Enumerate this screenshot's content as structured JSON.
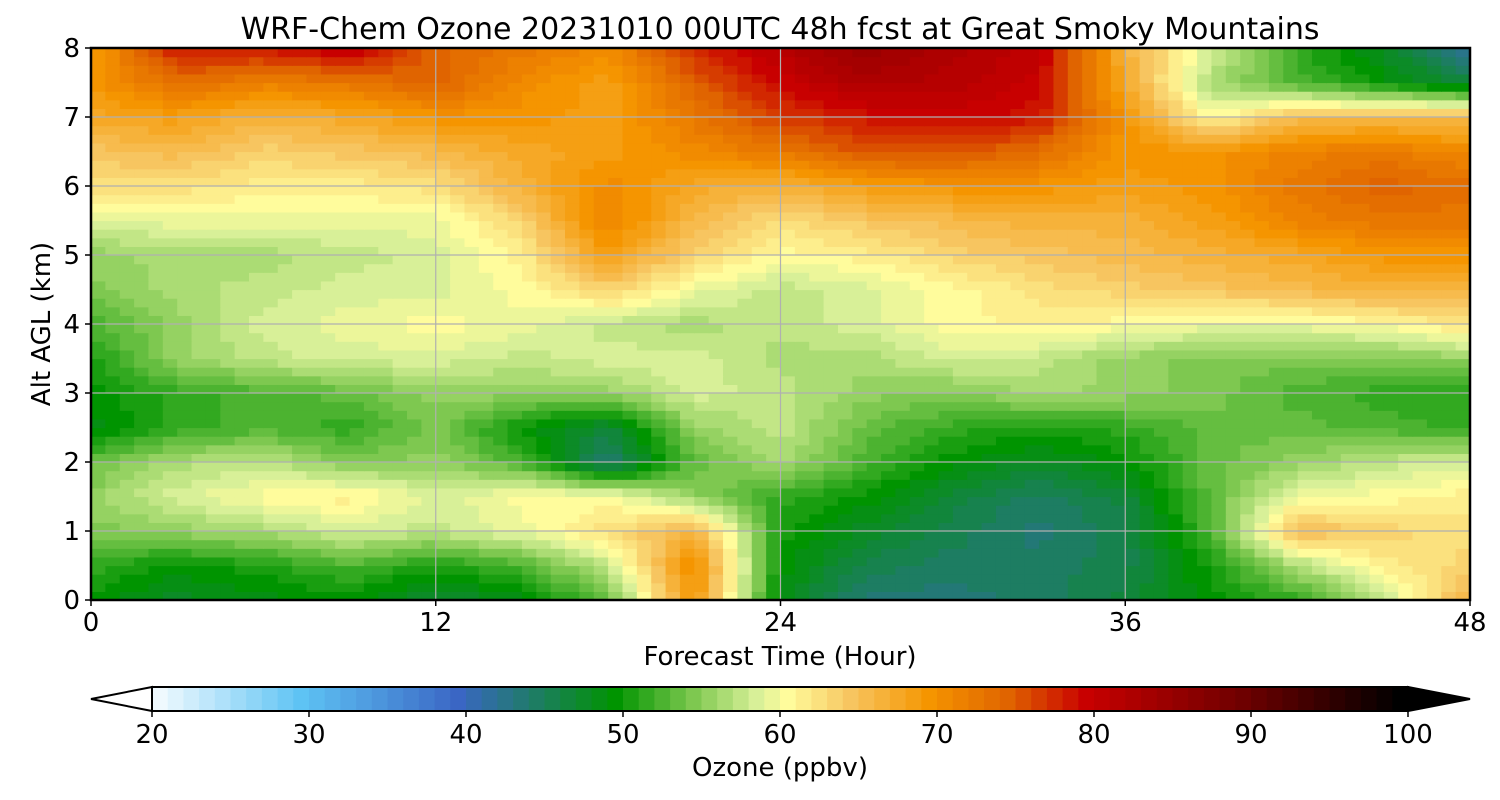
{
  "chart_data": {
    "type": "heatmap",
    "title": "WRF-Chem Ozone  20231010 00UTC 48h fcst at Great Smoky Mountains",
    "xlabel": "Forecast Time (Hour)",
    "ylabel": "Alt AGL (km)",
    "xlim": [
      0,
      48
    ],
    "ylim": [
      0,
      8
    ],
    "x_ticks": [
      0,
      12,
      24,
      36,
      48
    ],
    "y_ticks": [
      0,
      1,
      2,
      3,
      4,
      5,
      6,
      7,
      8
    ],
    "grid": true,
    "x_hours": [
      0,
      3,
      6,
      9,
      12,
      15,
      18,
      21,
      24,
      27,
      30,
      33,
      36,
      39,
      42,
      45,
      48
    ],
    "y_km": [
      0,
      0.5,
      1,
      1.5,
      2,
      2.5,
      3,
      3.5,
      4,
      4.5,
      5,
      5.5,
      6,
      6.5,
      7,
      7.5,
      8
    ],
    "z_ozone_ppbv": [
      [
        50,
        48,
        49,
        50,
        47,
        49,
        54,
        70,
        49,
        44,
        44,
        45,
        47,
        50,
        52,
        58,
        67
      ],
      [
        52,
        50,
        51,
        53,
        51,
        53,
        58,
        71,
        50,
        46,
        45,
        45,
        46,
        51,
        57,
        62,
        64
      ],
      [
        55,
        56,
        57,
        59,
        58,
        60,
        63,
        67,
        51,
        48,
        46,
        44,
        46,
        53,
        66,
        64,
        63
      ],
      [
        56,
        59,
        61,
        62,
        59,
        61,
        61,
        56,
        52,
        50,
        47,
        45,
        47,
        54,
        60,
        61,
        62
      ],
      [
        54,
        57,
        58,
        55,
        56,
        53,
        44,
        54,
        57,
        53,
        50,
        48,
        50,
        54,
        56,
        58,
        59
      ],
      [
        49,
        52,
        53,
        52,
        55,
        50,
        47,
        56,
        58,
        54,
        52,
        51,
        52,
        54,
        54,
        53,
        52
      ],
      [
        50,
        52,
        53,
        54,
        56,
        56,
        56,
        59,
        58,
        56,
        55,
        57,
        56,
        55,
        53,
        52,
        52
      ],
      [
        51,
        56,
        58,
        59,
        59,
        58,
        59,
        59,
        57,
        57,
        59,
        58,
        56,
        55,
        55,
        55,
        56
      ],
      [
        53,
        56,
        59,
        60,
        61,
        60,
        58,
        57,
        58,
        59,
        61,
        62,
        61,
        60,
        60,
        61,
        63
      ],
      [
        55,
        57,
        58,
        59,
        59,
        61,
        64,
        60,
        58,
        59,
        61,
        63,
        64,
        65,
        66,
        67,
        67
      ],
      [
        56,
        57,
        57,
        58,
        59,
        62,
        69,
        64,
        61,
        62,
        64,
        65,
        66,
        67,
        68,
        70,
        70
      ],
      [
        59,
        60,
        60,
        60,
        60,
        64,
        72,
        66,
        63,
        65,
        66,
        67,
        67,
        69,
        72,
        73,
        73
      ],
      [
        63,
        63,
        62,
        62,
        63,
        67,
        71,
        68,
        67,
        69,
        70,
        70,
        69,
        70,
        73,
        75,
        74
      ],
      [
        65,
        66,
        64,
        65,
        66,
        68,
        69,
        71,
        73,
        76,
        76,
        74,
        70,
        70,
        72,
        73,
        71
      ],
      [
        68,
        69,
        67,
        68,
        70,
        70,
        69,
        73,
        77,
        79,
        80,
        79,
        70,
        61,
        66,
        66,
        66
      ],
      [
        70,
        74,
        72,
        73,
        75,
        71,
        69,
        75,
        80,
        83,
        82,
        80,
        68,
        57,
        53,
        50,
        47
      ],
      [
        69,
        79,
        79,
        81,
        75,
        73,
        71,
        78,
        82,
        85,
        83,
        81,
        67,
        59,
        52,
        48,
        42
      ]
    ],
    "colorbar": {
      "label": "Ozone  (ppbv)",
      "min": 20,
      "max": 100,
      "step": 1,
      "ticks": [
        20,
        30,
        40,
        50,
        60,
        70,
        80,
        90,
        100
      ],
      "extend": "both",
      "orientation": "horizontal"
    },
    "colormap_stops": [
      [
        20,
        "#ffffff"
      ],
      [
        30,
        "#5ec3f4"
      ],
      [
        40,
        "#3a66c4"
      ],
      [
        50,
        "#009400"
      ],
      [
        55,
        "#7ec850"
      ],
      [
        59,
        "#d8f098"
      ],
      [
        61,
        "#fffc9c"
      ],
      [
        65,
        "#f7c560"
      ],
      [
        70,
        "#f59500"
      ],
      [
        75,
        "#e06400"
      ],
      [
        80,
        "#c80000"
      ],
      [
        90,
        "#6e0000"
      ],
      [
        100,
        "#000000"
      ]
    ]
  }
}
